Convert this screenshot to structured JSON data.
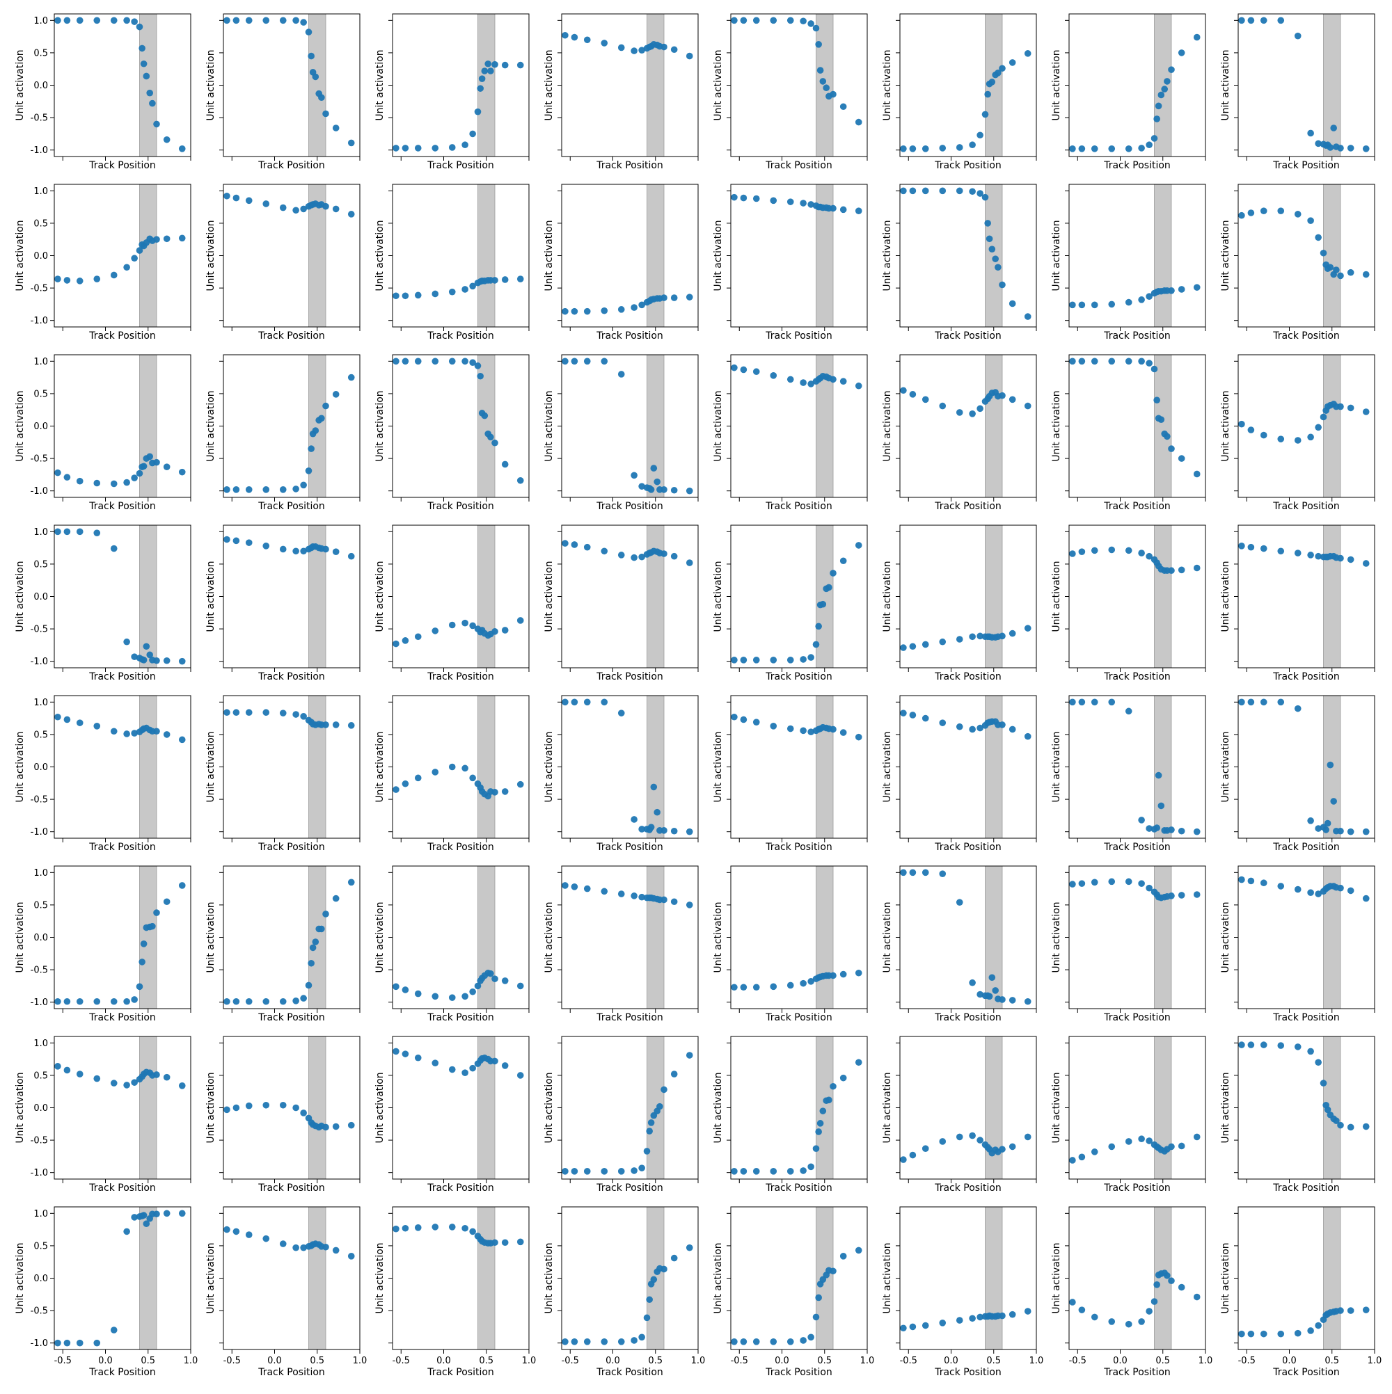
{
  "chart_data": {
    "type": "scatter",
    "grid": false,
    "layout": "8x8 grid of panels, shared x and y axes",
    "xlabel": "Track Position",
    "ylabel": "Unit activation",
    "xlim": [
      -0.6,
      1.0
    ],
    "ylim": [
      -1.1,
      1.1
    ],
    "xticks": [
      -0.5,
      0.0,
      0.5,
      1.0
    ],
    "xtick_labels": [
      "-0.5",
      "0.0",
      "0.5",
      "1.0"
    ],
    "yticks": [
      -1.0,
      -0.5,
      0.0,
      0.5,
      1.0
    ],
    "ytick_labels": [
      "-1.0",
      "-0.5",
      "0.0",
      "0.5",
      "1.0"
    ],
    "shaded_region": {
      "x": [
        0.4,
        0.6
      ],
      "color": "#c8c8c8"
    },
    "marker_color": "#1f77b4",
    "x": [
      -0.56,
      -0.45,
      -0.3,
      -0.1,
      0.1,
      0.25,
      0.34,
      0.4,
      0.43,
      0.45,
      0.48,
      0.52,
      0.55,
      0.6,
      0.72,
      0.9
    ],
    "panels": [
      [
        1.0,
        1.0,
        1.0,
        1.0,
        1.0,
        1.0,
        0.98,
        0.9,
        0.57,
        0.33,
        0.14,
        -0.12,
        -0.28,
        -0.6,
        -0.84,
        -0.98
      ],
      [
        1.0,
        1.0,
        1.0,
        1.0,
        1.0,
        1.0,
        0.97,
        0.82,
        0.45,
        0.2,
        0.13,
        -0.13,
        -0.19,
        -0.44,
        -0.66,
        -0.89
      ],
      [
        -0.97,
        -0.97,
        -0.97,
        -0.97,
        -0.96,
        -0.92,
        -0.75,
        -0.41,
        -0.05,
        0.1,
        0.22,
        0.33,
        0.22,
        0.32,
        0.31,
        0.31
      ],
      [
        0.77,
        0.74,
        0.7,
        0.65,
        0.58,
        0.53,
        0.54,
        0.57,
        0.59,
        0.6,
        0.63,
        0.62,
        0.6,
        0.59,
        0.55,
        0.45
      ],
      [
        1.0,
        1.0,
        1.0,
        1.0,
        1.0,
        0.99,
        0.95,
        0.88,
        0.63,
        0.23,
        0.06,
        -0.04,
        -0.17,
        -0.14,
        -0.33,
        -0.57
      ],
      [
        -0.98,
        -0.98,
        -0.98,
        -0.97,
        -0.96,
        -0.92,
        -0.77,
        -0.45,
        -0.14,
        0.02,
        0.05,
        0.16,
        0.19,
        0.26,
        0.35,
        0.49
      ],
      [
        -0.98,
        -0.98,
        -0.98,
        -0.98,
        -0.98,
        -0.97,
        -0.92,
        -0.82,
        -0.52,
        -0.32,
        -0.15,
        -0.06,
        0.06,
        0.24,
        0.5,
        0.74
      ],
      [
        1.0,
        1.0,
        1.0,
        1.0,
        0.76,
        -0.74,
        -0.9,
        -0.91,
        -0.93,
        -0.92,
        -0.96,
        -0.66,
        -0.95,
        -0.97,
        -0.97,
        -0.98
      ],
      [
        -0.36,
        -0.38,
        -0.39,
        -0.36,
        -0.3,
        -0.18,
        -0.04,
        0.08,
        0.17,
        0.15,
        0.2,
        0.26,
        0.23,
        0.25,
        0.26,
        0.27
      ],
      [
        0.92,
        0.89,
        0.85,
        0.8,
        0.74,
        0.7,
        0.72,
        0.76,
        0.78,
        0.79,
        0.8,
        0.78,
        0.79,
        0.76,
        0.72,
        0.64
      ],
      [
        -0.62,
        -0.62,
        -0.61,
        -0.59,
        -0.56,
        -0.52,
        -0.47,
        -0.42,
        -0.4,
        -0.39,
        -0.39,
        -0.38,
        -0.38,
        -0.38,
        -0.37,
        -0.36
      ],
      [
        -0.86,
        -0.86,
        -0.86,
        -0.85,
        -0.83,
        -0.8,
        -0.76,
        -0.72,
        -0.7,
        -0.68,
        -0.67,
        -0.66,
        -0.66,
        -0.65,
        -0.65,
        -0.64
      ],
      [
        0.9,
        0.89,
        0.88,
        0.85,
        0.83,
        0.81,
        0.79,
        0.77,
        0.75,
        0.75,
        0.74,
        0.74,
        0.73,
        0.73,
        0.71,
        0.69
      ],
      [
        1.0,
        1.0,
        1.0,
        1.0,
        1.0,
        0.99,
        0.96,
        0.9,
        0.5,
        0.26,
        0.1,
        -0.05,
        -0.18,
        -0.45,
        -0.74,
        -0.94
      ],
      [
        -0.76,
        -0.76,
        -0.76,
        -0.75,
        -0.72,
        -0.68,
        -0.63,
        -0.58,
        -0.56,
        -0.55,
        -0.55,
        -0.54,
        -0.54,
        -0.54,
        -0.52,
        -0.49
      ],
      [
        0.62,
        0.66,
        0.69,
        0.69,
        0.64,
        0.54,
        0.28,
        0.04,
        -0.14,
        -0.2,
        -0.18,
        -0.29,
        -0.22,
        -0.31,
        -0.26,
        -0.29
      ],
      [
        -0.72,
        -0.79,
        -0.85,
        -0.88,
        -0.89,
        -0.87,
        -0.8,
        -0.73,
        -0.63,
        -0.62,
        -0.5,
        -0.47,
        -0.57,
        -0.56,
        -0.63,
        -0.71
      ],
      [
        -0.98,
        -0.98,
        -0.98,
        -0.98,
        -0.98,
        -0.97,
        -0.91,
        -0.69,
        -0.35,
        -0.12,
        -0.07,
        0.09,
        0.12,
        0.31,
        0.49,
        0.75
      ],
      [
        1.0,
        1.0,
        1.0,
        1.0,
        1.0,
        1.0,
        0.98,
        0.93,
        0.77,
        0.2,
        0.16,
        -0.12,
        -0.17,
        -0.26,
        -0.59,
        -0.84
      ],
      [
        1.0,
        1.0,
        1.0,
        1.0,
        0.8,
        -0.76,
        -0.93,
        -0.95,
        -0.96,
        -0.98,
        -0.65,
        -0.86,
        -0.98,
        -0.98,
        -0.99,
        -1.0
      ],
      [
        0.9,
        0.87,
        0.84,
        0.78,
        0.72,
        0.67,
        0.65,
        0.69,
        0.72,
        0.74,
        0.77,
        0.76,
        0.74,
        0.72,
        0.69,
        0.62
      ],
      [
        0.55,
        0.49,
        0.41,
        0.31,
        0.21,
        0.19,
        0.27,
        0.38,
        0.42,
        0.46,
        0.51,
        0.52,
        0.46,
        0.47,
        0.41,
        0.31
      ],
      [
        1.0,
        1.0,
        1.0,
        1.0,
        1.0,
        1.0,
        0.97,
        0.88,
        0.4,
        0.12,
        0.1,
        -0.12,
        -0.16,
        -0.35,
        -0.5,
        -0.74
      ],
      [
        0.03,
        -0.06,
        -0.14,
        -0.2,
        -0.22,
        -0.17,
        -0.02,
        0.14,
        0.24,
        0.3,
        0.32,
        0.34,
        0.3,
        0.3,
        0.28,
        0.22
      ],
      [
        1.0,
        1.0,
        1.0,
        0.98,
        0.74,
        -0.7,
        -0.93,
        -0.95,
        -0.97,
        -0.98,
        -0.77,
        -0.9,
        -0.98,
        -0.99,
        -0.99,
        -1.0
      ],
      [
        0.88,
        0.86,
        0.83,
        0.78,
        0.73,
        0.7,
        0.7,
        0.73,
        0.75,
        0.77,
        0.77,
        0.75,
        0.74,
        0.73,
        0.69,
        0.62
      ],
      [
        -0.73,
        -0.68,
        -0.62,
        -0.53,
        -0.44,
        -0.41,
        -0.45,
        -0.5,
        -0.55,
        -0.52,
        -0.57,
        -0.6,
        -0.58,
        -0.54,
        -0.52,
        -0.37
      ],
      [
        0.82,
        0.8,
        0.76,
        0.7,
        0.64,
        0.6,
        0.61,
        0.65,
        0.67,
        0.68,
        0.7,
        0.69,
        0.67,
        0.66,
        0.62,
        0.52
      ],
      [
        -0.98,
        -0.98,
        -0.98,
        -0.98,
        -0.98,
        -0.97,
        -0.94,
        -0.74,
        -0.46,
        -0.13,
        -0.12,
        0.12,
        0.14,
        0.36,
        0.55,
        0.79
      ],
      [
        -0.79,
        -0.77,
        -0.74,
        -0.7,
        -0.66,
        -0.62,
        -0.61,
        -0.62,
        -0.62,
        -0.62,
        -0.63,
        -0.63,
        -0.62,
        -0.61,
        -0.57,
        -0.49
      ],
      [
        0.66,
        0.69,
        0.71,
        0.72,
        0.71,
        0.67,
        0.62,
        0.57,
        0.52,
        0.47,
        0.42,
        0.4,
        0.4,
        0.4,
        0.41,
        0.44
      ],
      [
        0.78,
        0.76,
        0.74,
        0.7,
        0.67,
        0.64,
        0.62,
        0.61,
        0.61,
        0.61,
        0.62,
        0.62,
        0.6,
        0.59,
        0.57,
        0.51
      ],
      [
        0.77,
        0.73,
        0.68,
        0.63,
        0.55,
        0.51,
        0.52,
        0.54,
        0.57,
        0.59,
        0.6,
        0.57,
        0.55,
        0.55,
        0.5,
        0.42
      ],
      [
        0.84,
        0.84,
        0.84,
        0.84,
        0.83,
        0.81,
        0.78,
        0.72,
        0.69,
        0.66,
        0.65,
        0.66,
        0.65,
        0.65,
        0.65,
        0.64
      ],
      [
        -0.35,
        -0.26,
        -0.17,
        -0.08,
        0.0,
        -0.02,
        -0.17,
        -0.26,
        -0.32,
        -0.38,
        -0.42,
        -0.45,
        -0.38,
        -0.39,
        -0.38,
        -0.27
      ],
      [
        1.0,
        1.0,
        1.0,
        1.0,
        0.83,
        -0.81,
        -0.96,
        -0.96,
        -0.97,
        -0.93,
        -0.31,
        -0.7,
        -0.98,
        -0.98,
        -0.99,
        -1.0
      ],
      [
        0.77,
        0.73,
        0.69,
        0.63,
        0.59,
        0.56,
        0.54,
        0.56,
        0.58,
        0.59,
        0.61,
        0.6,
        0.59,
        0.58,
        0.53,
        0.46
      ],
      [
        0.83,
        0.8,
        0.75,
        0.68,
        0.62,
        0.58,
        0.6,
        0.64,
        0.68,
        0.69,
        0.7,
        0.7,
        0.65,
        0.65,
        0.58,
        0.47
      ],
      [
        1.0,
        1.0,
        1.0,
        1.0,
        0.86,
        -0.82,
        -0.95,
        -0.96,
        -0.94,
        -0.13,
        -0.6,
        -0.98,
        -0.98,
        -0.97,
        -0.99,
        -1.0
      ],
      [
        1.0,
        1.0,
        1.0,
        1.0,
        0.9,
        -0.83,
        -0.95,
        -0.93,
        -0.97,
        -0.87,
        0.03,
        -0.53,
        -0.99,
        -0.99,
        -1.0,
        -1.0
      ],
      [
        -0.99,
        -0.99,
        -0.99,
        -0.99,
        -0.99,
        -0.99,
        -0.96,
        -0.76,
        -0.38,
        -0.1,
        0.15,
        0.16,
        0.17,
        0.38,
        0.55,
        0.8
      ],
      [
        -0.99,
        -0.99,
        -0.99,
        -0.99,
        -0.99,
        -0.98,
        -0.94,
        -0.74,
        -0.4,
        -0.16,
        -0.07,
        0.13,
        0.13,
        0.36,
        0.6,
        0.85
      ],
      [
        -0.76,
        -0.81,
        -0.87,
        -0.91,
        -0.93,
        -0.91,
        -0.84,
        -0.75,
        -0.67,
        -0.63,
        -0.59,
        -0.55,
        -0.56,
        -0.64,
        -0.67,
        -0.75
      ],
      [
        0.8,
        0.78,
        0.75,
        0.71,
        0.67,
        0.64,
        0.62,
        0.61,
        0.61,
        0.61,
        0.6,
        0.59,
        0.58,
        0.58,
        0.55,
        0.5
      ],
      [
        -0.77,
        -0.77,
        -0.77,
        -0.76,
        -0.74,
        -0.71,
        -0.68,
        -0.64,
        -0.62,
        -0.61,
        -0.6,
        -0.59,
        -0.59,
        -0.59,
        -0.57,
        -0.55
      ],
      [
        1.0,
        1.0,
        1.0,
        0.98,
        0.54,
        -0.7,
        -0.88,
        -0.9,
        -0.9,
        -0.91,
        -0.62,
        -0.82,
        -0.95,
        -0.96,
        -0.97,
        -0.99
      ],
      [
        0.82,
        0.83,
        0.85,
        0.86,
        0.86,
        0.83,
        0.76,
        0.7,
        0.66,
        0.62,
        0.61,
        0.62,
        0.63,
        0.64,
        0.65,
        0.66
      ],
      [
        0.89,
        0.87,
        0.84,
        0.79,
        0.74,
        0.69,
        0.67,
        0.71,
        0.75,
        0.77,
        0.79,
        0.79,
        0.77,
        0.76,
        0.72,
        0.6
      ],
      [
        0.64,
        0.58,
        0.52,
        0.45,
        0.38,
        0.35,
        0.39,
        0.44,
        0.48,
        0.52,
        0.55,
        0.54,
        0.5,
        0.51,
        0.47,
        0.34
      ],
      [
        -0.03,
        0.0,
        0.03,
        0.04,
        0.04,
        0.0,
        -0.08,
        -0.16,
        -0.23,
        -0.26,
        -0.28,
        -0.3,
        -0.28,
        -0.3,
        -0.29,
        -0.27
      ],
      [
        0.87,
        0.83,
        0.77,
        0.69,
        0.59,
        0.54,
        0.61,
        0.68,
        0.73,
        0.76,
        0.77,
        0.75,
        0.72,
        0.72,
        0.65,
        0.5
      ],
      [
        -0.98,
        -0.98,
        -0.98,
        -0.98,
        -0.98,
        -0.97,
        -0.93,
        -0.67,
        -0.36,
        -0.23,
        -0.12,
        -0.05,
        0.02,
        0.28,
        0.52,
        0.81
      ],
      [
        -0.98,
        -0.98,
        -0.98,
        -0.98,
        -0.98,
        -0.97,
        -0.91,
        -0.63,
        -0.37,
        -0.24,
        -0.05,
        0.11,
        0.12,
        0.33,
        0.46,
        0.7
      ],
      [
        -0.8,
        -0.73,
        -0.63,
        -0.52,
        -0.45,
        -0.43,
        -0.5,
        -0.57,
        -0.61,
        -0.64,
        -0.7,
        -0.65,
        -0.68,
        -0.64,
        -0.6,
        -0.45
      ],
      [
        -0.81,
        -0.76,
        -0.68,
        -0.6,
        -0.52,
        -0.48,
        -0.51,
        -0.57,
        -0.6,
        -0.62,
        -0.65,
        -0.67,
        -0.64,
        -0.6,
        -0.59,
        -0.45
      ],
      [
        0.97,
        0.97,
        0.97,
        0.96,
        0.94,
        0.87,
        0.7,
        0.38,
        0.04,
        -0.03,
        -0.11,
        -0.17,
        -0.2,
        -0.27,
        -0.3,
        -0.29
      ],
      [
        -1.0,
        -1.0,
        -1.0,
        -1.0,
        -0.8,
        0.72,
        0.94,
        0.95,
        0.96,
        0.97,
        0.84,
        0.92,
        0.99,
        0.99,
        1.0,
        1.0
      ],
      [
        0.75,
        0.72,
        0.67,
        0.61,
        0.53,
        0.47,
        0.47,
        0.49,
        0.5,
        0.52,
        0.53,
        0.52,
        0.49,
        0.48,
        0.43,
        0.34
      ],
      [
        0.76,
        0.77,
        0.78,
        0.79,
        0.79,
        0.77,
        0.72,
        0.65,
        0.6,
        0.57,
        0.55,
        0.54,
        0.54,
        0.55,
        0.55,
        0.56
      ],
      [
        -0.98,
        -0.98,
        -0.98,
        -0.98,
        -0.98,
        -0.96,
        -0.91,
        -0.61,
        -0.33,
        -0.09,
        -0.02,
        0.1,
        0.15,
        0.14,
        0.31,
        0.47
      ],
      [
        -0.98,
        -0.98,
        -0.98,
        -0.98,
        -0.98,
        -0.96,
        -0.91,
        -0.6,
        -0.3,
        -0.09,
        -0.02,
        0.05,
        0.12,
        0.11,
        0.34,
        0.43
      ],
      [
        -0.77,
        -0.75,
        -0.73,
        -0.69,
        -0.65,
        -0.62,
        -0.6,
        -0.59,
        -0.59,
        -0.58,
        -0.59,
        -0.59,
        -0.58,
        -0.58,
        -0.56,
        -0.51
      ],
      [
        -0.37,
        -0.49,
        -0.6,
        -0.67,
        -0.71,
        -0.67,
        -0.51,
        -0.36,
        -0.1,
        0.05,
        0.07,
        0.08,
        0.04,
        -0.04,
        -0.14,
        -0.29
      ],
      [
        -0.86,
        -0.86,
        -0.86,
        -0.86,
        -0.85,
        -0.81,
        -0.73,
        -0.64,
        -0.57,
        -0.55,
        -0.53,
        -0.52,
        -0.51,
        -0.5,
        -0.5,
        -0.49
      ]
    ]
  }
}
